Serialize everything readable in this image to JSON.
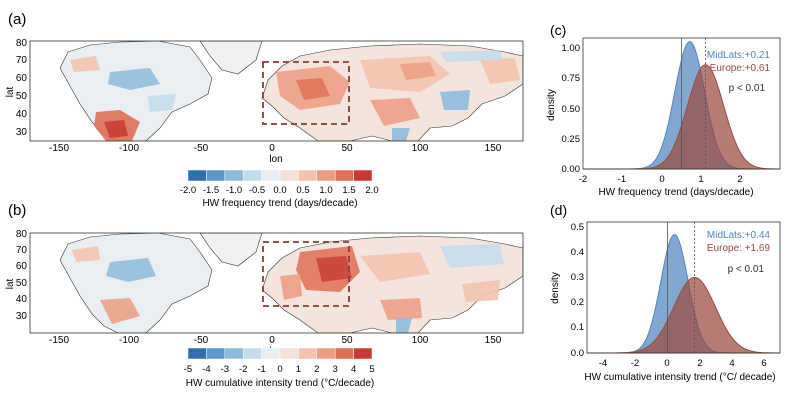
{
  "panels": {
    "a": {
      "label": "(a)",
      "xlabel": "lon",
      "ylabel": "lat",
      "xticks": [
        "-150",
        "-100",
        "-50",
        "0",
        "50",
        "100",
        "150"
      ],
      "yticks": [
        "30",
        "40",
        "50",
        "60",
        "70",
        "80"
      ],
      "colorbar": {
        "ticks": [
          "-2.0",
          "-1.5",
          "-1.0",
          "-0.5",
          "0.0",
          "0.5",
          "1.0",
          "1.5",
          "2.0"
        ],
        "title": "HW frequency trend (days/decade)"
      }
    },
    "b": {
      "label": "(b)",
      "xlabel": "lon",
      "ylabel": "lat",
      "xticks": [
        "-150",
        "-100",
        "-50",
        "0",
        "50",
        "100",
        "150"
      ],
      "yticks": [
        "30",
        "40",
        "50",
        "60",
        "70",
        "80"
      ],
      "colorbar": {
        "ticks": [
          "-5",
          "-4",
          "-3",
          "-2",
          "-1",
          "0",
          "1",
          "2",
          "3",
          "4",
          "5"
        ],
        "title": "HW cumulative intensity trend (°C/decade)"
      }
    },
    "c": {
      "label": "(c)",
      "xlabel": "HW frequency trend (days/decade)",
      "ylabel": "density",
      "xticks": [
        "-2",
        "-1",
        "0",
        "1",
        "2"
      ],
      "yticks": [
        "0.00",
        "0.25",
        "0.50",
        "0.75",
        "1.00"
      ],
      "legend": [
        "MidLats:+0.21",
        "Europe:+0.61"
      ],
      "pvalue": "p < 0.01"
    },
    "d": {
      "label": "(d)",
      "xlabel": "HW cumulative intensity trend (°C/ decade)",
      "ylabel": "density",
      "xticks": [
        "-4",
        "-2",
        "0",
        "2",
        "4",
        "6"
      ],
      "yticks": [
        "0.0",
        "0.1",
        "0.2",
        "0.3",
        "0.4",
        "0.5"
      ],
      "legend": [
        "MidLats:+0.44",
        "Europe: +1.69"
      ],
      "pvalue": "p < 0.01"
    }
  },
  "colors": {
    "midlats": "#4f86bf",
    "europe": "#9b4a3f",
    "box": "#8b3a2e",
    "cmap": [
      "#2f6fae",
      "#5b97c8",
      "#8cbbdc",
      "#c3dcec",
      "#e8eef2",
      "#f3e2da",
      "#f4c3ae",
      "#ec9c80",
      "#df6f55",
      "#c63b34"
    ]
  },
  "chart_data": [
    {
      "type": "area",
      "panel": "c",
      "xlabel": "HW frequency trend (days/decade)",
      "ylabel": "density",
      "xlim": [
        -2.5,
        2.5
      ],
      "ylim": [
        0,
        1.08
      ],
      "series": [
        {
          "name": "MidLats",
          "mean": 0.21,
          "sd": 0.38,
          "peak": 1.05
        },
        {
          "name": "Europe",
          "mean": 0.61,
          "sd": 0.46,
          "peak": 0.86
        }
      ],
      "vlines": [
        0.0,
        0.61
      ],
      "annotation": "p < 0.01"
    },
    {
      "type": "area",
      "panel": "d",
      "xlabel": "HW cumulative intensity trend (°C/ decade)",
      "ylabel": "density",
      "xlim": [
        -5,
        7
      ],
      "ylim": [
        0,
        0.52
      ],
      "series": [
        {
          "name": "MidLats",
          "mean": 0.44,
          "sd": 0.85,
          "peak": 0.47
        },
        {
          "name": "Europe",
          "mean": 1.69,
          "sd": 1.3,
          "peak": 0.3
        }
      ],
      "vlines": [
        0.0,
        1.69
      ],
      "annotation": "p < 0.01"
    }
  ]
}
